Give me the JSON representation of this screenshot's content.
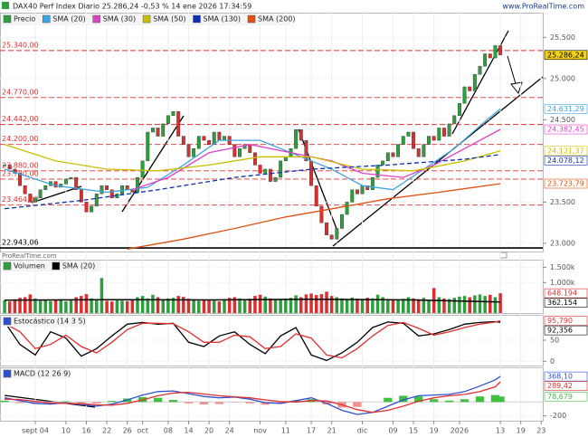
{
  "header": {
    "title": "DAX40 Perf Index Diario 25.286,24 -0,53 % 14 ene 2026 17:34:59",
    "site": "www.ProRealTime.com",
    "watermark": "ProRealTime.com"
  },
  "chart_data": {
    "type": "candlestick",
    "xlim": [
      -0.9,
      105.3
    ],
    "xticks": [
      {
        "value": 6,
        "label": "sept 04"
      },
      {
        "value": 12,
        "label": "10"
      },
      {
        "value": 16,
        "label": "16"
      },
      {
        "value": 20,
        "label": "22"
      },
      {
        "value": 24,
        "label": "26"
      },
      {
        "value": 27,
        "label": "oct"
      },
      {
        "value": 32,
        "label": "08"
      },
      {
        "value": 36,
        "label": "14"
      },
      {
        "value": 40,
        "label": "20"
      },
      {
        "value": 44,
        "label": "24"
      },
      {
        "value": 50,
        "label": "nov"
      },
      {
        "value": 55,
        "label": "11"
      },
      {
        "value": 60,
        "label": "17"
      },
      {
        "value": 64,
        "label": "21"
      },
      {
        "value": 70,
        "label": "dic"
      },
      {
        "value": 76,
        "label": "09"
      },
      {
        "value": 80,
        "label": "15"
      },
      {
        "value": 84,
        "label": "19"
      },
      {
        "value": 89,
        "label": "2026"
      },
      {
        "value": 97,
        "label": "13"
      },
      {
        "value": 101,
        "label": "19"
      },
      {
        "value": 105,
        "label": "23"
      }
    ],
    "ylim": [
      22900,
      25800
    ],
    "yticks": [
      {
        "value": 25500,
        "label": "25.500"
      },
      {
        "value": 25000,
        "label": "25.000"
      },
      {
        "value": 24500,
        "label": "24.500"
      },
      {
        "value": 23500,
        "label": "23.500"
      },
      {
        "value": 23000,
        "label": "23.000"
      }
    ],
    "levels": [
      {
        "value": 25340,
        "label": "25.340,00",
        "color": "#e03030"
      },
      {
        "value": 24770,
        "label": "24.770,00",
        "color": "#e03030"
      },
      {
        "value": 24442,
        "label": "24.442,00",
        "color": "#e03030"
      },
      {
        "value": 24200,
        "label": "24.200,00",
        "color": "#e03030"
      },
      {
        "value": 23880,
        "label": "23.880,00",
        "color": "#e03030"
      },
      {
        "value": 23780,
        "label": "23.780,00",
        "color": "#e03030"
      },
      {
        "value": 23464,
        "label": "23.464,00",
        "color": "#e03030"
      },
      {
        "value": 22943.06,
        "label": "22.943,06",
        "color": "#000000"
      }
    ],
    "price": {
      "name": "Precio",
      "up_color": "#2e9e3e",
      "down_color": "#d83030",
      "label_color": "#f2d21b",
      "last_label": "25.286,24",
      "values": [
        23950,
        23900,
        23850,
        23700,
        23600,
        23500,
        23550,
        23650,
        23700,
        23750,
        23680,
        23720,
        23780,
        23800,
        23650,
        23500,
        23380,
        23450,
        23600,
        23700,
        23650,
        23550,
        23600,
        23700,
        23650,
        23620,
        23800,
        24000,
        24350,
        24400,
        24300,
        24450,
        24550,
        24600,
        24300,
        24200,
        24050,
        24150,
        24300,
        24250,
        24200,
        24350,
        24250,
        24300,
        24200,
        24050,
        24150,
        24200,
        24100,
        23950,
        23850,
        23900,
        23750,
        23800,
        24000,
        24050,
        24150,
        24380,
        24250,
        24000,
        23700,
        23450,
        23250,
        23100,
        23050,
        23180,
        23350,
        23500,
        23650,
        23600,
        23700,
        23650,
        23800,
        23950,
        24000,
        24100,
        24050,
        24200,
        24300,
        24350,
        24150,
        24050,
        24200,
        24300,
        24250,
        24400,
        24300,
        24450,
        24550,
        24700,
        24900,
        24850,
        25050,
        25150,
        25300,
        25250,
        25400,
        25286.24
      ]
    },
    "sma": [
      {
        "name": "SMA (20)",
        "color": "#3da5e0",
        "last_label": "24.631,29",
        "x": [
          0,
          10,
          20,
          28,
          35,
          42,
          50,
          58,
          64,
          70,
          76,
          82,
          88,
          94,
          97
        ],
        "values": [
          23900,
          23700,
          23620,
          23680,
          23950,
          24250,
          24250,
          24050,
          23900,
          23700,
          23650,
          23900,
          24150,
          24480,
          24631.29
        ]
      },
      {
        "name": "SMA (30)",
        "color": "#e040c8",
        "last_label": "24.382,45",
        "x": [
          25,
          32,
          40,
          48,
          56,
          64,
          70,
          78,
          84,
          90,
          97
        ],
        "values": [
          23650,
          23800,
          24100,
          24200,
          24100,
          24000,
          23850,
          23800,
          23950,
          24150,
          24382.45
        ]
      },
      {
        "name": "SMA (50)",
        "color": "#c8c000",
        "last_label": "24.121,37",
        "x": [
          0,
          10,
          20,
          30,
          40,
          50,
          60,
          70,
          80,
          90,
          97
        ],
        "values": [
          24200,
          24000,
          23900,
          23880,
          23950,
          24050,
          24050,
          23900,
          23880,
          24000,
          24121.37
        ]
      },
      {
        "name": "SMA (130)",
        "color": "#1030b0",
        "dashed": true,
        "last_label": "24.078,12",
        "x": [
          0,
          15,
          30,
          45,
          60,
          75,
          90,
          97
        ],
        "values": [
          23420,
          23520,
          23650,
          23800,
          23900,
          23950,
          24020,
          24078.12
        ]
      },
      {
        "name": "SMA (200)",
        "color": "#e05010",
        "last_label": "23.723,79",
        "x": [
          24,
          35,
          45,
          55,
          65,
          75,
          85,
          97
        ],
        "values": [
          22930,
          23050,
          23180,
          23320,
          23430,
          23540,
          23620,
          23723.79
        ]
      }
    ],
    "volume": {
      "name": "Volumen",
      "ylim": [
        0,
        1750000
      ],
      "yticks": [
        {
          "value": 1500000,
          "label": "1.500k"
        },
        {
          "value": 1000000,
          "label": "1.000k"
        }
      ],
      "label_color": "#e03030",
      "last_label": "648.194",
      "values": [
        420000,
        380000,
        450000,
        500000,
        520000,
        610000,
        480000,
        400000,
        430000,
        390000,
        420000,
        460000,
        380000,
        410000,
        520000,
        560000,
        620000,
        480000,
        450000,
        1150000,
        400000,
        380000,
        430000,
        410000,
        390000,
        450000,
        520000,
        560000,
        480000,
        600000,
        520000,
        450000,
        480000,
        500000,
        560000,
        530000,
        470000,
        420000,
        400000,
        450000,
        430000,
        410000,
        380000,
        460000,
        500000,
        520000,
        480000,
        440000,
        470000,
        560000,
        600000,
        540000,
        480000,
        460000,
        430000,
        470000,
        500000,
        580000,
        520000,
        610000,
        640000,
        590000,
        620000,
        700000,
        560000,
        520000,
        480000,
        450000,
        510000,
        470000,
        440000,
        500000,
        480000,
        600000,
        520000,
        460000,
        430000,
        420000,
        470000,
        520000,
        480000,
        450000,
        500000,
        430000,
        820000,
        520000,
        480000,
        460000,
        500000,
        540000,
        560000,
        520000,
        580000,
        610000,
        560000,
        600000,
        520000,
        648194
      ],
      "sma": {
        "name": "SMA (20)",
        "color": "#000000",
        "last_label": "362.154",
        "x": [
          0,
          20,
          40,
          60,
          80,
          97
        ],
        "values": [
          420000,
          440000,
          430000,
          450000,
          430000,
          362154
        ]
      }
    },
    "stochastic": {
      "name": "Estocástico (14 3 5)",
      "ylim": [
        -10,
        110
      ],
      "yticks": [
        50,
        0
      ],
      "x": [
        0,
        3,
        6,
        9,
        12,
        15,
        18,
        21,
        24,
        27,
        30,
        33,
        36,
        39,
        42,
        45,
        48,
        51,
        54,
        57,
        60,
        63,
        66,
        69,
        72,
        75,
        78,
        81,
        84,
        87,
        90,
        93,
        96,
        97
      ],
      "series": [
        {
          "color": "#000000",
          "last_label": "92,356",
          "values": [
            93,
            40,
            15,
            70,
            55,
            12,
            30,
            60,
            88,
            92,
            88,
            90,
            45,
            35,
            60,
            70,
            40,
            18,
            60,
            80,
            15,
            2,
            20,
            45,
            80,
            93,
            90,
            60,
            65,
            75,
            88,
            92,
            94,
            92.356
          ]
        },
        {
          "color": "#e03030",
          "last_label": "95,790",
          "values": [
            90,
            70,
            30,
            40,
            62,
            35,
            20,
            45,
            75,
            90,
            90,
            89,
            70,
            45,
            45,
            62,
            58,
            30,
            35,
            65,
            55,
            15,
            8,
            30,
            60,
            85,
            92,
            78,
            62,
            70,
            80,
            88,
            93,
            95.79
          ]
        }
      ]
    },
    "macd": {
      "name": "MACD (12 26 9)",
      "ylim": [
        -270,
        500
      ],
      "yticks": [
        {
          "value": -200,
          "label": "-200"
        }
      ],
      "x": [
        0,
        3,
        6,
        9,
        12,
        15,
        18,
        21,
        24,
        27,
        30,
        33,
        36,
        39,
        42,
        45,
        48,
        51,
        54,
        57,
        60,
        63,
        66,
        69,
        72,
        75,
        78,
        81,
        84,
        87,
        90,
        93,
        96,
        97
      ],
      "series": [
        {
          "color": "#3050d0",
          "last_label": "368,10",
          "values": [
            60,
            20,
            -20,
            -30,
            -10,
            -40,
            -60,
            -30,
            30,
            100,
            150,
            160,
            120,
            80,
            60,
            70,
            40,
            -10,
            -20,
            20,
            60,
            -20,
            -120,
            -180,
            -150,
            -60,
            30,
            90,
            100,
            110,
            150,
            230,
            320,
            368.1
          ]
        },
        {
          "color": "#e03030",
          "last_label": "289,42",
          "values": [
            40,
            35,
            10,
            -15,
            -20,
            -25,
            -40,
            -45,
            -20,
            30,
            90,
            130,
            140,
            115,
            90,
            75,
            60,
            30,
            5,
            0,
            20,
            15,
            -40,
            -110,
            -150,
            -120,
            -60,
            10,
            60,
            90,
            110,
            150,
            220,
            289.42
          ]
        }
      ],
      "histogram": {
        "color": "#40c040",
        "neg_color": "#f09090",
        "last_label": "78,679",
        "values": [
          20,
          -15,
          -30,
          -15,
          10,
          -15,
          -20,
          15,
          50,
          70,
          60,
          30,
          -20,
          -35,
          -30,
          -5,
          -20,
          -40,
          -25,
          20,
          40,
          -35,
          -80,
          -70,
          0,
          60,
          90,
          80,
          40,
          20,
          40,
          80,
          100,
          78.679
        ]
      }
    }
  }
}
